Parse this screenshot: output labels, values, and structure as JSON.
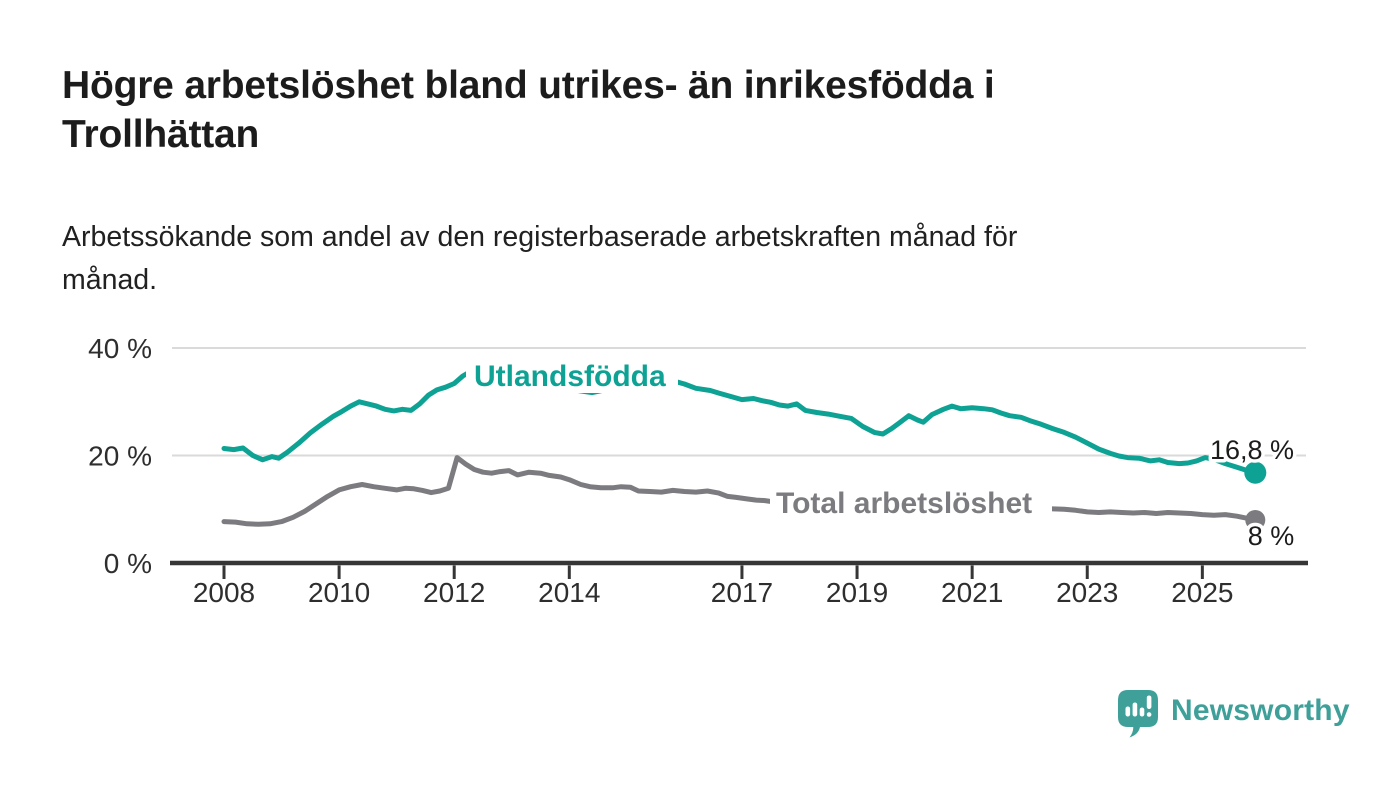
{
  "header": {
    "title_lines": [
      "Högre arbetslöshet bland utrikes- än inrikesfödda i",
      "Trollhättan"
    ],
    "subtitle_lines": [
      "Arbetssökande som andel av den registerbaserade arbetskraften månad för",
      "månad."
    ]
  },
  "footer": {
    "brand": "Newsworthy",
    "logo_icon": "newsworthy-speech-bubble-bar-chart-icon"
  },
  "colors": {
    "series_teal": "#0ea294",
    "series_gray": "#7c7c80",
    "gridline": "#dadada",
    "axis": "#363636",
    "text_dark": "#1c1c1c",
    "brand_teal": "#3fa09a"
  },
  "chart_data": {
    "type": "line",
    "title": "Högre arbetslöshet bland utrikes- än inrikesfödda i Trollhättan",
    "subtitle": "Arbetssökande som andel av den registerbaserade arbetskraften månad för månad.",
    "xlabel": "",
    "ylabel": "",
    "unit": "%",
    "grid": "horizontal",
    "ylim": [
      0,
      43
    ],
    "x_range": [
      2008,
      2025.92
    ],
    "x_ticks": [
      2008,
      2010,
      2012,
      2014,
      2017,
      2019,
      2021,
      2023,
      2025
    ],
    "y_ticks": [
      {
        "label": "40 %",
        "value": 40
      },
      {
        "label": "20 %",
        "value": 20
      },
      {
        "label": "0 %",
        "value": 0
      }
    ],
    "series": [
      {
        "name": "Utlandsfödda",
        "color": "#0ea294",
        "end_label": "16,8 %",
        "last_value": 16.8,
        "points": [
          [
            2008.0,
            21.3
          ],
          [
            2008.17,
            21.1
          ],
          [
            2008.33,
            21.4
          ],
          [
            2008.5,
            20.0
          ],
          [
            2008.67,
            19.2
          ],
          [
            2008.83,
            19.8
          ],
          [
            2008.95,
            19.5
          ],
          [
            2009.1,
            20.6
          ],
          [
            2009.3,
            22.3
          ],
          [
            2009.5,
            24.2
          ],
          [
            2009.7,
            25.8
          ],
          [
            2009.9,
            27.3
          ],
          [
            2010.05,
            28.2
          ],
          [
            2010.2,
            29.2
          ],
          [
            2010.35,
            30.0
          ],
          [
            2010.5,
            29.6
          ],
          [
            2010.65,
            29.2
          ],
          [
            2010.8,
            28.6
          ],
          [
            2010.95,
            28.3
          ],
          [
            2011.1,
            28.6
          ],
          [
            2011.25,
            28.4
          ],
          [
            2011.4,
            29.6
          ],
          [
            2011.55,
            31.2
          ],
          [
            2011.7,
            32.2
          ],
          [
            2011.85,
            32.7
          ],
          [
            2012.0,
            33.4
          ],
          [
            2012.15,
            34.8
          ],
          [
            2012.3,
            35.7
          ],
          [
            2012.45,
            35.4
          ],
          [
            2012.6,
            35.9
          ],
          [
            2012.8,
            35.7
          ],
          [
            2013.0,
            35.2
          ],
          [
            2013.3,
            34.4
          ],
          [
            2013.6,
            33.6
          ],
          [
            2013.9,
            32.8
          ],
          [
            2014.15,
            32.1
          ],
          [
            2014.4,
            31.7
          ],
          [
            2014.7,
            32.4
          ],
          [
            2015.0,
            33.2
          ],
          [
            2015.3,
            33.8
          ],
          [
            2015.6,
            34.1
          ],
          [
            2015.8,
            33.9
          ],
          [
            2016.0,
            33.3
          ],
          [
            2016.2,
            32.5
          ],
          [
            2016.45,
            32.1
          ],
          [
            2016.6,
            31.6
          ],
          [
            2016.8,
            31.0
          ],
          [
            2017.0,
            30.4
          ],
          [
            2017.2,
            30.6
          ],
          [
            2017.35,
            30.2
          ],
          [
            2017.5,
            29.9
          ],
          [
            2017.65,
            29.4
          ],
          [
            2017.8,
            29.2
          ],
          [
            2017.95,
            29.6
          ],
          [
            2018.1,
            28.4
          ],
          [
            2018.3,
            28.0
          ],
          [
            2018.5,
            27.7
          ],
          [
            2018.7,
            27.3
          ],
          [
            2018.9,
            26.9
          ],
          [
            2019.1,
            25.4
          ],
          [
            2019.3,
            24.3
          ],
          [
            2019.45,
            24.0
          ],
          [
            2019.6,
            25.0
          ],
          [
            2019.75,
            26.2
          ],
          [
            2019.9,
            27.4
          ],
          [
            2020.05,
            26.6
          ],
          [
            2020.15,
            26.2
          ],
          [
            2020.3,
            27.6
          ],
          [
            2020.5,
            28.6
          ],
          [
            2020.65,
            29.2
          ],
          [
            2020.8,
            28.7
          ],
          [
            2021.0,
            28.9
          ],
          [
            2021.2,
            28.7
          ],
          [
            2021.35,
            28.5
          ],
          [
            2021.5,
            27.9
          ],
          [
            2021.65,
            27.4
          ],
          [
            2021.85,
            27.1
          ],
          [
            2022.0,
            26.5
          ],
          [
            2022.2,
            25.8
          ],
          [
            2022.4,
            25.0
          ],
          [
            2022.6,
            24.3
          ],
          [
            2022.8,
            23.4
          ],
          [
            2023.0,
            22.3
          ],
          [
            2023.2,
            21.2
          ],
          [
            2023.4,
            20.4
          ],
          [
            2023.55,
            19.9
          ],
          [
            2023.7,
            19.6
          ],
          [
            2023.9,
            19.5
          ],
          [
            2024.1,
            19.0
          ],
          [
            2024.25,
            19.2
          ],
          [
            2024.4,
            18.7
          ],
          [
            2024.6,
            18.5
          ],
          [
            2024.75,
            18.6
          ],
          [
            2024.9,
            19.0
          ],
          [
            2025.05,
            19.6
          ],
          [
            2025.2,
            19.3
          ],
          [
            2025.4,
            18.5
          ],
          [
            2025.6,
            17.8
          ],
          [
            2025.75,
            17.3
          ],
          [
            2025.92,
            16.8
          ]
        ]
      },
      {
        "name": "Total arbetslöshet",
        "color": "#7c7c80",
        "end_label": "8 %",
        "last_value": 8,
        "points": [
          [
            2008.0,
            7.7
          ],
          [
            2008.2,
            7.6
          ],
          [
            2008.4,
            7.3
          ],
          [
            2008.6,
            7.2
          ],
          [
            2008.8,
            7.3
          ],
          [
            2009.0,
            7.7
          ],
          [
            2009.2,
            8.5
          ],
          [
            2009.4,
            9.6
          ],
          [
            2009.6,
            11.0
          ],
          [
            2009.8,
            12.4
          ],
          [
            2010.0,
            13.6
          ],
          [
            2010.2,
            14.2
          ],
          [
            2010.4,
            14.6
          ],
          [
            2010.6,
            14.2
          ],
          [
            2010.8,
            13.9
          ],
          [
            2011.0,
            13.6
          ],
          [
            2011.15,
            13.9
          ],
          [
            2011.3,
            13.8
          ],
          [
            2011.45,
            13.5
          ],
          [
            2011.6,
            13.1
          ],
          [
            2011.75,
            13.4
          ],
          [
            2011.9,
            13.9
          ],
          [
            2012.05,
            19.6
          ],
          [
            2012.2,
            18.4
          ],
          [
            2012.35,
            17.4
          ],
          [
            2012.5,
            16.9
          ],
          [
            2012.65,
            16.7
          ],
          [
            2012.8,
            17.0
          ],
          [
            2012.95,
            17.2
          ],
          [
            2013.1,
            16.4
          ],
          [
            2013.3,
            16.9
          ],
          [
            2013.5,
            16.7
          ],
          [
            2013.65,
            16.3
          ],
          [
            2013.85,
            16.0
          ],
          [
            2014.0,
            15.5
          ],
          [
            2014.2,
            14.6
          ],
          [
            2014.36,
            14.2
          ],
          [
            2014.55,
            14.0
          ],
          [
            2014.75,
            14.0
          ],
          [
            2014.9,
            14.2
          ],
          [
            2015.06,
            14.1
          ],
          [
            2015.2,
            13.4
          ],
          [
            2015.4,
            13.3
          ],
          [
            2015.6,
            13.2
          ],
          [
            2015.8,
            13.5
          ],
          [
            2016.0,
            13.3
          ],
          [
            2016.2,
            13.2
          ],
          [
            2016.4,
            13.4
          ],
          [
            2016.6,
            13.0
          ],
          [
            2016.75,
            12.4
          ],
          [
            2016.9,
            12.2
          ],
          [
            2017.1,
            11.9
          ],
          [
            2017.25,
            11.7
          ],
          [
            2017.4,
            11.6
          ],
          [
            2017.6,
            11.3
          ],
          [
            2017.8,
            11.1
          ],
          [
            2018.0,
            11.0
          ],
          [
            2018.3,
            10.8
          ],
          [
            2018.6,
            10.6
          ],
          [
            2018.9,
            10.5
          ],
          [
            2019.1,
            10.3
          ],
          [
            2019.4,
            10.2
          ],
          [
            2019.7,
            10.4
          ],
          [
            2019.95,
            10.7
          ],
          [
            2020.2,
            11.6
          ],
          [
            2020.45,
            12.3
          ],
          [
            2020.7,
            12.1
          ],
          [
            2021.0,
            11.7
          ],
          [
            2021.3,
            11.2
          ],
          [
            2021.6,
            10.8
          ],
          [
            2021.9,
            10.5
          ],
          [
            2022.1,
            10.3
          ],
          [
            2022.35,
            10.1
          ],
          [
            2022.6,
            10.0
          ],
          [
            2022.8,
            9.8
          ],
          [
            2023.0,
            9.5
          ],
          [
            2023.2,
            9.4
          ],
          [
            2023.4,
            9.5
          ],
          [
            2023.6,
            9.4
          ],
          [
            2023.8,
            9.3
          ],
          [
            2024.0,
            9.4
          ],
          [
            2024.2,
            9.2
          ],
          [
            2024.4,
            9.4
          ],
          [
            2024.6,
            9.3
          ],
          [
            2024.8,
            9.2
          ],
          [
            2025.0,
            9.0
          ],
          [
            2025.2,
            8.9
          ],
          [
            2025.4,
            9.0
          ],
          [
            2025.6,
            8.7
          ],
          [
            2025.75,
            8.4
          ],
          [
            2025.92,
            8.0
          ]
        ]
      }
    ],
    "legend_position": "inline-labels-on-lines"
  }
}
